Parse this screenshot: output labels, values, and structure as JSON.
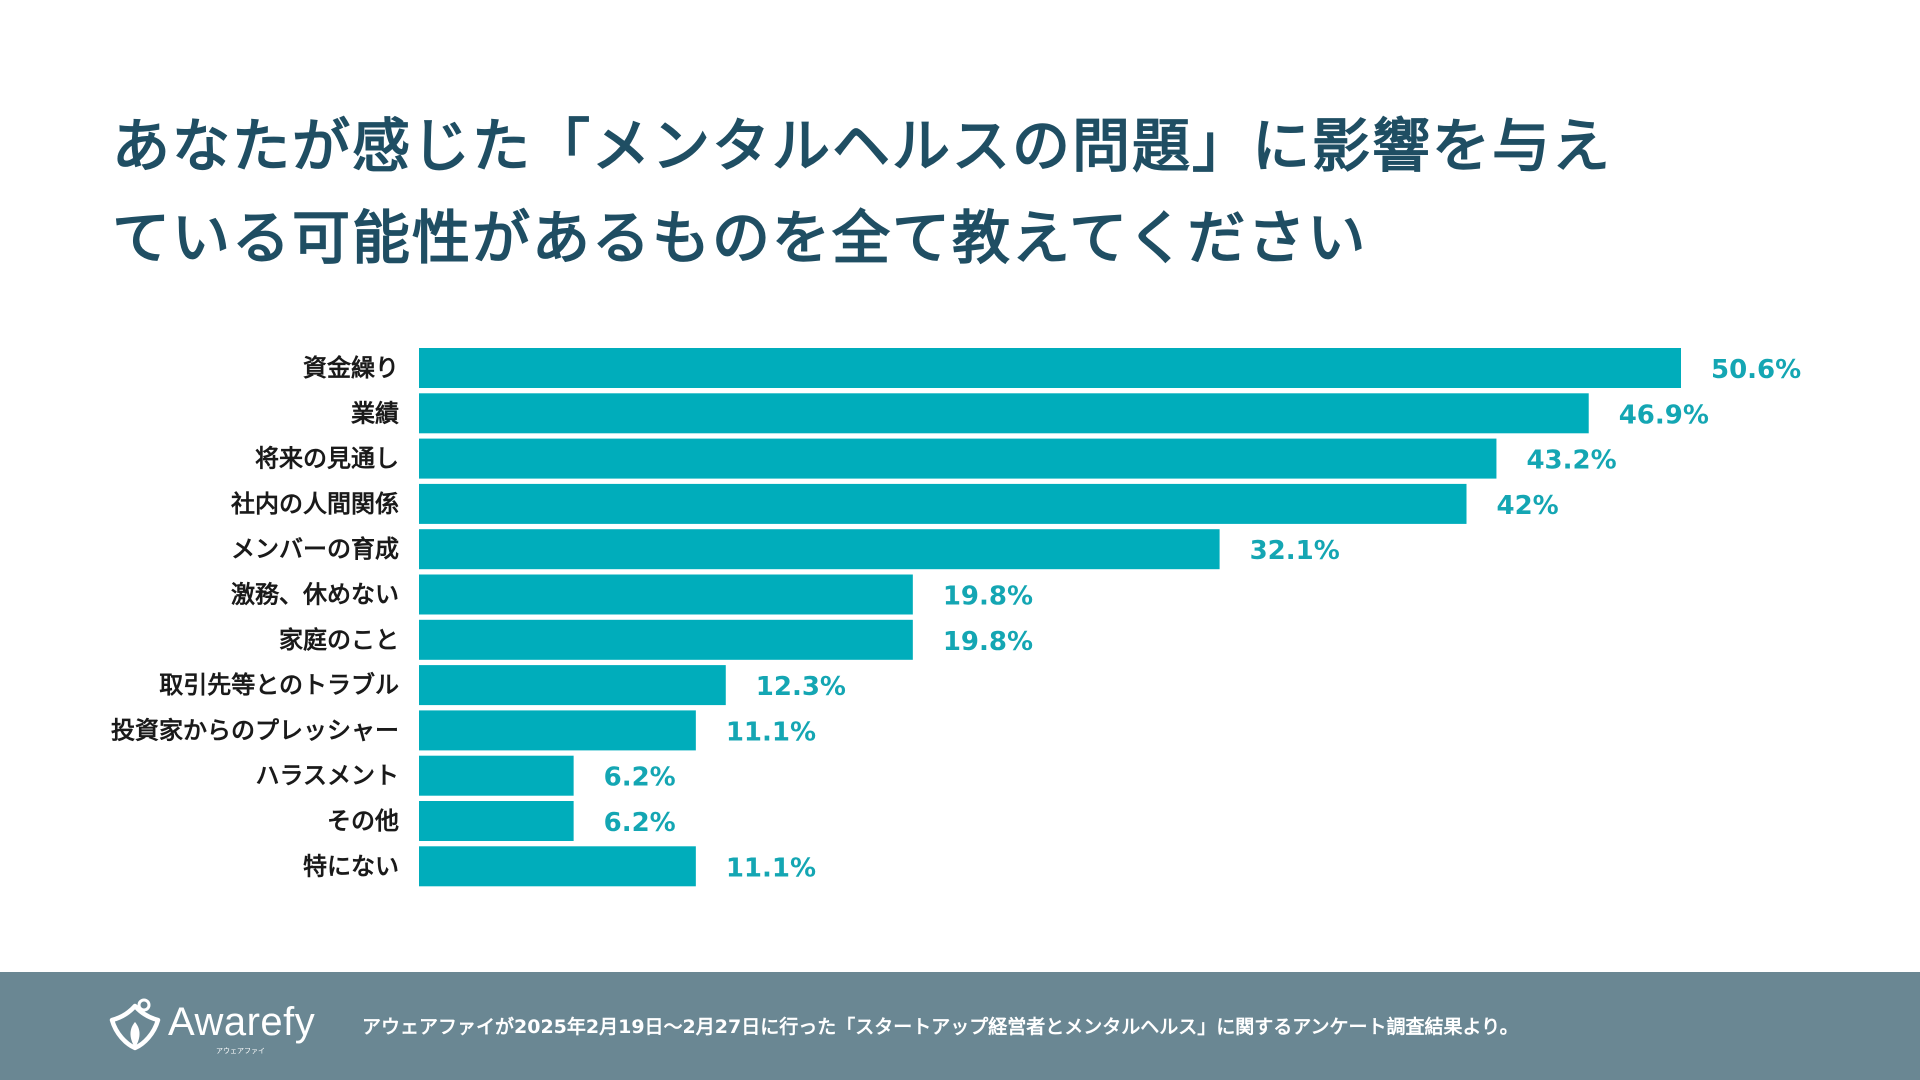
{
  "header": {
    "title_line1": "あなたが感じた「メンタルヘルスの問題」に影響を与え",
    "title_line2": "ている可能性があるものを全て教えてください"
  },
  "colors": {
    "bar": "#00adbb",
    "value_label": "#14a6b3",
    "category_label": "#1a1a1a",
    "title": "#1f4e63",
    "footer_bg": "#6a8793"
  },
  "chart_data": {
    "type": "bar",
    "orientation": "horizontal",
    "title": "あなたが感じた「メンタルヘルスの問題」に影響を与えている可能性があるものを全て教えてください",
    "categories": [
      "資金繰り",
      "業績",
      "将来の見通し",
      "社内の人間関係",
      "メンバーの育成",
      "激務、休めない",
      "家庭のこと",
      "取引先等とのトラブル",
      "投資家からのプレッシャー",
      "ハラスメント",
      "その他",
      "特にない"
    ],
    "values": [
      50.6,
      46.9,
      43.2,
      42,
      32.1,
      19.8,
      19.8,
      12.3,
      11.1,
      6.2,
      6.2,
      11.1
    ],
    "value_labels": [
      "50.6%",
      "46.9%",
      "43.2%",
      "42%",
      "32.1%",
      "19.8%",
      "19.8%",
      "12.3%",
      "11.1%",
      "6.2%",
      "6.2%",
      "11.1%"
    ],
    "xlim": [
      0,
      52
    ],
    "xlabel": "",
    "ylabel": "",
    "grid": false,
    "legend": "none"
  },
  "footer": {
    "logo_text": "Awarefy",
    "logo_subtext": "アウェアファイ",
    "note": "アウェアファイが2025年2月19日〜2月27日に行った「スタートアップ経営者とメンタルヘルス」に関するアンケート調査結果より。"
  }
}
